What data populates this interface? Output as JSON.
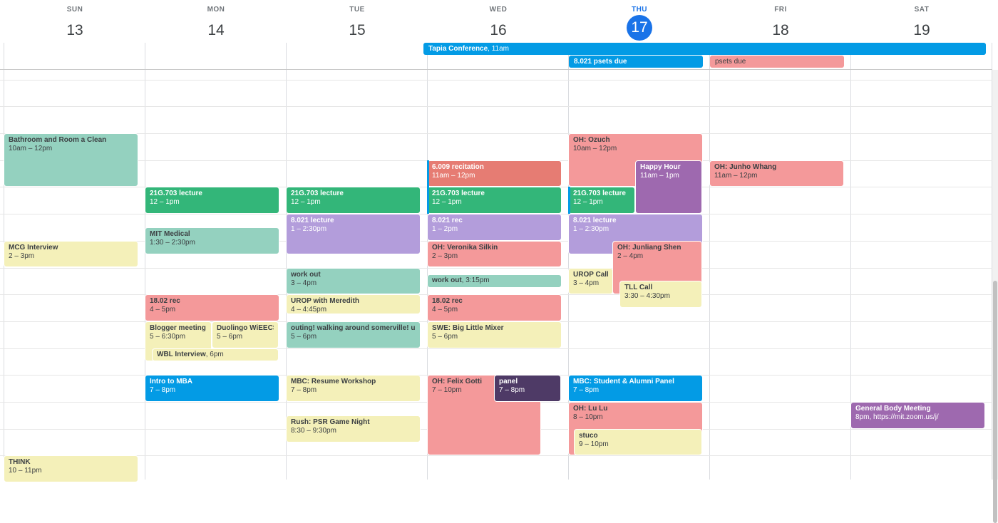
{
  "days": [
    {
      "name": "SUN",
      "num": "13"
    },
    {
      "name": "MON",
      "num": "14"
    },
    {
      "name": "TUE",
      "num": "15"
    },
    {
      "name": "WED",
      "num": "16"
    },
    {
      "name": "THU",
      "num": "17",
      "today": true
    },
    {
      "name": "FRI",
      "num": "18"
    },
    {
      "name": "SAT",
      "num": "19"
    }
  ],
  "colors": {
    "teal": "#94d1bf",
    "green": "#33b679",
    "lavender": "#b39ddb",
    "red": "#f4999a",
    "tomato": "#e67c73",
    "yellow": "#f4f0b9",
    "blue": "#039be5",
    "grape": "#9e69af",
    "eggplant": "#4e3a66",
    "today": "#1a73e8"
  },
  "all_day": [
    {
      "title": "Tapia Conference",
      "time": "11am",
      "color": "blue",
      "day_start": 3,
      "day_end": 6
    },
    {
      "title": "8.021 psets due",
      "color": "blue",
      "day_start": 4,
      "day_end": 4
    },
    {
      "title": "psets due",
      "color": "red",
      "day_start": 5,
      "day_end": 5
    }
  ],
  "events": [
    {
      "title": "Bathroom and Room a Clean",
      "time": "10am – 12pm",
      "day": 0,
      "start": "10:00",
      "end": "12:00",
      "color": "teal"
    },
    {
      "title": "MCG Interview",
      "time": "2 – 3pm",
      "day": 0,
      "start": "14:00",
      "end": "15:00",
      "color": "yellow"
    },
    {
      "title": "THINK",
      "time": "10 – 11pm",
      "day": 0,
      "start": "22:00",
      "end": "23:00",
      "color": "yellow"
    },
    {
      "title": "21G.703 lecture",
      "time": "12 – 1pm",
      "day": 1,
      "start": "12:00",
      "end": "13:00",
      "color": "green"
    },
    {
      "title": "MIT Medical",
      "time": "1:30 – 2:30pm",
      "day": 1,
      "start": "13:30",
      "end": "14:30",
      "color": "teal"
    },
    {
      "title": "18.02 rec",
      "time": "4 – 5pm",
      "day": 1,
      "start": "16:00",
      "end": "17:00",
      "color": "red"
    },
    {
      "title": "Blogger meeting",
      "time": "5 – 6:30pm",
      "day": 1,
      "start": "17:00",
      "end": "18:30",
      "color": "yellow"
    },
    {
      "title": "Duolingo WiEECS Tech Talk",
      "time": "5 – 6pm",
      "day": 1,
      "start": "17:00",
      "end": "18:00",
      "color": "yellow"
    },
    {
      "title": "WBL Interview",
      "time": "6pm",
      "day": 1,
      "start": "18:00",
      "end": "18:30",
      "color": "yellow"
    },
    {
      "title": "Intro to MBA",
      "time": "7 – 8pm",
      "day": 1,
      "start": "19:00",
      "end": "20:00",
      "color": "blue"
    },
    {
      "title": "21G.703 lecture",
      "time": "12 – 1pm",
      "day": 2,
      "start": "12:00",
      "end": "13:00",
      "color": "green"
    },
    {
      "title": "8.021 lecture",
      "time": "1 – 2:30pm",
      "day": 2,
      "start": "13:00",
      "end": "14:30",
      "color": "lavender"
    },
    {
      "title": "work out",
      "time": "3 – 4pm",
      "day": 2,
      "start": "15:00",
      "end": "16:00",
      "color": "teal"
    },
    {
      "title": "UROP with Meredith",
      "time": "4 – 4:45pm",
      "day": 2,
      "start": "16:00",
      "end": "16:45",
      "color": "yellow"
    },
    {
      "title": "outing! walking around somerville! union sq",
      "time": "5 – 6pm",
      "day": 2,
      "start": "17:00",
      "end": "18:00",
      "color": "teal"
    },
    {
      "title": "MBC: Resume Workshop",
      "time": "7 – 8pm",
      "day": 2,
      "start": "19:00",
      "end": "20:00",
      "color": "yellow"
    },
    {
      "title": "Rush: PSR Game Night",
      "time": "8:30 – 9:30pm",
      "day": 2,
      "start": "20:30",
      "end": "21:30",
      "color": "yellow"
    },
    {
      "title": "6.009 recitation",
      "time": "11am – 12pm",
      "day": 3,
      "start": "11:00",
      "end": "12:00",
      "color": "tomato"
    },
    {
      "title": "21G.703 lecture",
      "time": "12 – 1pm",
      "day": 3,
      "start": "12:00",
      "end": "13:00",
      "color": "green"
    },
    {
      "title": "8.021 rec",
      "time": "1 – 2pm",
      "day": 3,
      "start": "13:00",
      "end": "14:00",
      "color": "lavender"
    },
    {
      "title": "OH: Veronika Silkin",
      "time": "2 – 3pm",
      "day": 3,
      "start": "14:00",
      "end": "15:00",
      "color": "red"
    },
    {
      "title": "work out",
      "time": "3:15pm",
      "day": 3,
      "start": "15:15",
      "end": "15:45",
      "color": "teal"
    },
    {
      "title": "18.02 rec",
      "time": "4 – 5pm",
      "day": 3,
      "start": "16:00",
      "end": "17:00",
      "color": "red"
    },
    {
      "title": "SWE: Big Little Mixer",
      "time": "5 – 6pm",
      "day": 3,
      "start": "17:00",
      "end": "18:00",
      "color": "yellow"
    },
    {
      "title": "OH: Felix Gotti",
      "time": "7 – 10pm",
      "day": 3,
      "start": "19:00",
      "end": "22:00",
      "color": "red"
    },
    {
      "title": "panel",
      "time": "7 – 8pm",
      "day": 3,
      "start": "19:00",
      "end": "20:00",
      "color": "eggplant"
    },
    {
      "title": "OH: Ozuch",
      "time": "10am – 12pm",
      "day": 4,
      "start": "10:00",
      "end": "12:00",
      "color": "red"
    },
    {
      "title": "Happy Hour",
      "time": "11am – 1pm",
      "day": 4,
      "start": "11:00",
      "end": "13:00",
      "color": "grape"
    },
    {
      "title": "21G.703 lecture",
      "time": "12 – 1pm",
      "day": 4,
      "start": "12:00",
      "end": "13:00",
      "color": "green"
    },
    {
      "title": "8.021 lecture",
      "time": "1 – 2:30pm",
      "day": 4,
      "start": "13:00",
      "end": "14:30",
      "color": "lavender"
    },
    {
      "title": "OH: Junliang Shen",
      "time": "2 – 4pm",
      "day": 4,
      "start": "14:00",
      "end": "16:00",
      "color": "red"
    },
    {
      "title": "UROP Call",
      "time": "3 – 4pm",
      "day": 4,
      "start": "15:00",
      "end": "16:00",
      "color": "yellow"
    },
    {
      "title": "TLL Call",
      "time": "3:30 – 4:30pm",
      "day": 4,
      "start": "15:30",
      "end": "16:30",
      "color": "yellow"
    },
    {
      "title": "MBC: Student & Alumni Panel",
      "time": "7 – 8pm",
      "day": 4,
      "start": "19:00",
      "end": "20:00",
      "color": "blue"
    },
    {
      "title": "OH: Lu Lu",
      "time": "8 – 10pm",
      "day": 4,
      "start": "20:00",
      "end": "22:00",
      "color": "red"
    },
    {
      "title": "stuco",
      "time": "9 – 10pm",
      "day": 4,
      "start": "21:00",
      "end": "22:00",
      "color": "yellow"
    },
    {
      "title": "OH: Junho Whang",
      "time": "11am – 12pm",
      "day": 5,
      "start": "11:00",
      "end": "12:00",
      "color": "red"
    },
    {
      "title": "General Body Meeting",
      "time": "8pm, https://mit.zoom.us/j/",
      "day": 6,
      "start": "20:00",
      "end": "21:00",
      "color": "grape"
    }
  ]
}
